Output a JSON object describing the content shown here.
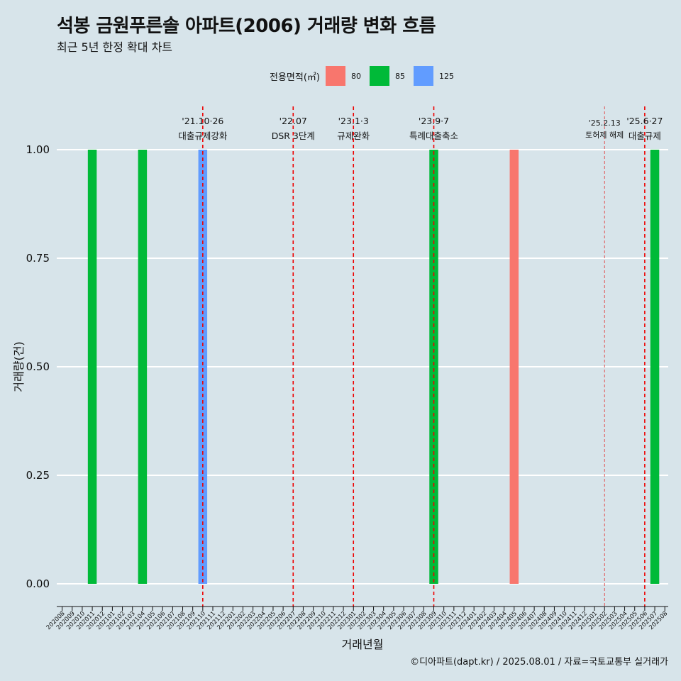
{
  "title": "석봉 금원푸른솔 아파트(2006) 거래량 변화 흐름",
  "subtitle": "최근 5년 한정 확대 차트",
  "legend": {
    "title": "전용면적(㎡)",
    "items": [
      {
        "label": "80",
        "color": "#f8766d"
      },
      {
        "label": "85",
        "color": "#00ba38"
      },
      {
        "label": "125",
        "color": "#619cff"
      }
    ]
  },
  "footer": "©디아파트(dapt.kr) / 2025.08.01 / 자료=국토교통부 실거래가",
  "chart_data": {
    "type": "bar",
    "xlabel": "거래년월",
    "ylabel": "거래량(건)",
    "ylim": [
      0,
      1
    ],
    "yticks": [
      "0.00",
      "0.25",
      "0.50",
      "0.75",
      "1.00"
    ],
    "categories": [
      "202008",
      "202009",
      "202010",
      "202011",
      "202012",
      "202101",
      "202102",
      "202103",
      "202104",
      "202105",
      "202106",
      "202107",
      "202108",
      "202109",
      "202110",
      "202111",
      "202112",
      "202201",
      "202202",
      "202203",
      "202204",
      "202205",
      "202206",
      "202207",
      "202208",
      "202209",
      "202210",
      "202211",
      "202212",
      "202301",
      "202302",
      "202303",
      "202304",
      "202305",
      "202306",
      "202307",
      "202308",
      "202309",
      "202310",
      "202311",
      "202312",
      "202401",
      "202402",
      "202403",
      "202404",
      "202405",
      "202406",
      "202407",
      "202408",
      "202409",
      "202410",
      "202411",
      "202412",
      "202501",
      "202502",
      "202503",
      "202504",
      "202505",
      "202506",
      "202507",
      "202508"
    ],
    "series": [
      {
        "name": "80",
        "color": "#f8766d",
        "points": [
          {
            "x": "202405",
            "y": 1
          }
        ]
      },
      {
        "name": "85",
        "color": "#00ba38",
        "points": [
          {
            "x": "202011",
            "y": 1
          },
          {
            "x": "202104",
            "y": 1
          },
          {
            "x": "202309",
            "y": 1
          },
          {
            "x": "202507",
            "y": 1
          }
        ]
      },
      {
        "name": "125",
        "color": "#619cff",
        "points": [
          {
            "x": "202110",
            "y": 1
          }
        ]
      }
    ],
    "events": [
      {
        "x": "202110",
        "date": "'21.10·26",
        "text": "대출규제강화",
        "style": "dashed"
      },
      {
        "x": "202207",
        "date": "'22.07",
        "text": "DSR 3단계",
        "style": "dashed"
      },
      {
        "x": "202301",
        "date": "'23.1·3",
        "text": "규제완화",
        "style": "dashed"
      },
      {
        "x": "202309",
        "date": "'23.9·7",
        "text": "특례대출축소",
        "style": "dashed"
      },
      {
        "x": "202502",
        "date": "'25.2.13",
        "text": "토허제 해제",
        "style": "thin"
      },
      {
        "x": "202506",
        "date": "'25.6·27",
        "text": "대출규제",
        "style": "dashed"
      }
    ]
  }
}
